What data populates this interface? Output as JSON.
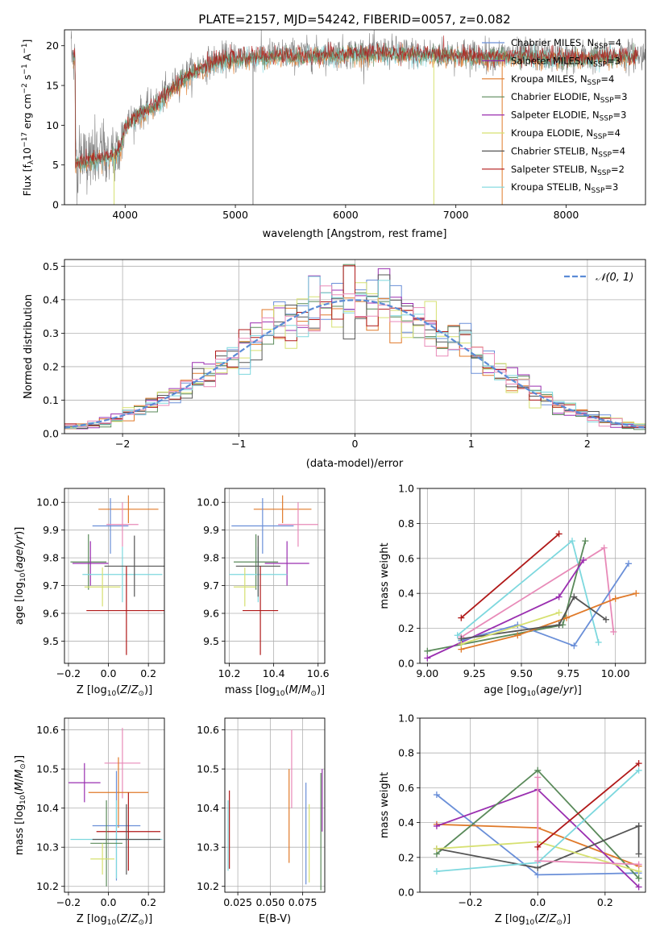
{
  "figure": {
    "title": "PLATE=2157, MJD=54242, FIBERID=0057, z=0.082"
  },
  "colors": {
    "chabrier_miles": "#6a8fd8",
    "salpeter_miles": "#8f2aa8",
    "kroupa_miles": "#e07a2a",
    "chabrier_elodie": "#5a8a5a",
    "salpeter_elodie": "#9a2fb0",
    "kroupa_elodie": "#d6e070",
    "chabrier_stelib": "#555555",
    "salpeter_stelib": "#b01818",
    "kroupa_stelib": "#7dd8de",
    "pink": "#e88ab8",
    "normal_curve": "#5b8bd6"
  },
  "chart_data": [
    {
      "id": "spectrum",
      "type": "line",
      "title": "PLATE=2157, MJD=54242, FIBERID=0057, z=0.082",
      "xlabel": "wavelength [Angstrom, rest frame]",
      "ylabel": "Flux [f_λ10^-17 erg cm^-2 s^-1 A^-1]",
      "xlim": [
        3450,
        8720
      ],
      "ylim": [
        0,
        22
      ],
      "xticks": [
        4000,
        5000,
        6000,
        7000,
        8000
      ],
      "yticks": [
        0,
        5,
        10,
        15,
        20
      ],
      "legend_position": "right",
      "legend": [
        "Chabrier MILES, N_SSP=4",
        "Salpeter MILES, N_SSP=3",
        "Kroupa MILES, N_SSP=4",
        "Chabrier ELODIE, N_SSP=3",
        "Salpeter ELODIE, N_SSP=3",
        "Kroupa ELODIE, N_SSP=4",
        "Chabrier STELIB, N_SSP=4",
        "Salpeter STELIB, N_SSP=2",
        "Kroupa STELIB, N_SSP=3"
      ],
      "continuum": {
        "x": [
          3550,
          3700,
          3850,
          3950,
          4000,
          4100,
          4200,
          4300,
          4400,
          4500,
          4600,
          4700,
          4800,
          4900,
          5000,
          5200,
          5400,
          5600,
          5800,
          6000,
          6200,
          6400,
          6600,
          6800,
          7000,
          7200,
          7400,
          7600,
          7800,
          8000,
          8200,
          8400,
          8600
        ],
        "y": [
          5.5,
          5.8,
          6.2,
          7.0,
          10.0,
          11.3,
          12.0,
          13.0,
          14.5,
          15.8,
          16.8,
          17.5,
          18.0,
          18.4,
          18.6,
          18.8,
          18.9,
          18.9,
          19.0,
          19.1,
          19.2,
          19.2,
          19.1,
          19.0,
          19.0,
          18.9,
          18.8,
          18.8,
          18.7,
          18.6,
          18.6,
          18.7,
          18.8
        ]
      }
    },
    {
      "id": "residuals",
      "type": "bar",
      "xlabel": "(data-model)/error",
      "ylabel": "Normed distribution",
      "xlim": [
        -2.5,
        2.5
      ],
      "ylim": [
        0,
        0.52
      ],
      "xticks": [
        -2,
        -1,
        0,
        1,
        2
      ],
      "yticks": [
        0.0,
        0.1,
        0.2,
        0.3,
        0.4,
        0.5
      ],
      "legend": [
        "𝒩(0, 1)"
      ],
      "legend_position": "top-right",
      "bin_width": 0.1
    },
    {
      "id": "age_vs_Z",
      "type": "scatter",
      "xlabel": "Z [log10(Z/Z☉)]",
      "ylabel": "age  [log10(age/yr)]",
      "xlim": [
        -0.22,
        0.28
      ],
      "ylim": [
        9.42,
        10.05
      ],
      "xticks": [
        -0.2,
        0.0,
        0.2
      ],
      "yticks": [
        9.5,
        9.6,
        9.7,
        9.8,
        9.9,
        10.0
      ],
      "points": [
        {
          "series": "kroupa_miles",
          "x": 0.1,
          "xerr": 0.15,
          "y": 9.975,
          "yerr": 0.05
        },
        {
          "series": "chabrier_miles",
          "x": 0.01,
          "xerr": 0.09,
          "y": 9.915,
          "yerr": 0.1
        },
        {
          "series": "pink",
          "x": 0.07,
          "xerr": 0.08,
          "y": 9.92,
          "yerr": 0.08
        },
        {
          "series": "chabrier_elodie",
          "x": -0.1,
          "xerr": 0.09,
          "y": 9.785,
          "yerr": 0.1
        },
        {
          "series": "salpeter_elodie",
          "x": -0.09,
          "xerr": 0.09,
          "y": 9.78,
          "yerr": 0.08
        },
        {
          "series": "kroupa_stelib",
          "x": 0.07,
          "xerr": 0.2,
          "y": 9.74,
          "yerr": 0.1
        },
        {
          "series": "chabrier_stelib",
          "x": 0.13,
          "xerr": 0.15,
          "y": 9.77,
          "yerr": 0.11
        },
        {
          "series": "kroupa_elodie",
          "x": -0.03,
          "xerr": 0.09,
          "y": 9.695,
          "yerr": 0.07
        },
        {
          "series": "salpeter_stelib",
          "x": 0.09,
          "xerr": 0.2,
          "y": 9.61,
          "yerr": 0.16
        }
      ]
    },
    {
      "id": "age_vs_mass",
      "type": "scatter",
      "xlabel": "mass [log10(M/M☉)]",
      "ylabel": "",
      "xlim": [
        10.18,
        10.63
      ],
      "ylim": [
        9.42,
        10.05
      ],
      "xticks": [
        10.2,
        10.4,
        10.6
      ],
      "yticks": [
        9.5,
        9.6,
        9.7,
        9.8,
        9.9,
        10.0
      ],
      "points": [
        {
          "series": "kroupa_miles",
          "x": 10.44,
          "xerr": 0.13,
          "y": 9.975,
          "yerr": 0.05
        },
        {
          "series": "chabrier_miles",
          "x": 10.35,
          "xerr": 0.14,
          "y": 9.915,
          "yerr": 0.1
        },
        {
          "series": "pink",
          "x": 10.51,
          "xerr": 0.09,
          "y": 9.92,
          "yerr": 0.08
        },
        {
          "series": "chabrier_elodie",
          "x": 10.32,
          "xerr": 0.1,
          "y": 9.785,
          "yerr": 0.1
        },
        {
          "series": "salpeter_elodie",
          "x": 10.46,
          "xerr": 0.1,
          "y": 9.78,
          "yerr": 0.08
        },
        {
          "series": "kroupa_stelib",
          "x": 10.33,
          "xerr": 0.13,
          "y": 9.74,
          "yerr": 0.1
        },
        {
          "series": "chabrier_stelib",
          "x": 10.33,
          "xerr": 0.1,
          "y": 9.77,
          "yerr": 0.11
        },
        {
          "series": "kroupa_elodie",
          "x": 10.27,
          "xerr": 0.05,
          "y": 9.695,
          "yerr": 0.07
        },
        {
          "series": "salpeter_stelib",
          "x": 10.34,
          "xerr": 0.08,
          "y": 9.61,
          "yerr": 0.16
        }
      ]
    },
    {
      "id": "weight_vs_age",
      "type": "line",
      "xlabel": "age  [log10(age/yr)]",
      "ylabel": "mass weight",
      "xlim": [
        8.96,
        10.16
      ],
      "ylim": [
        0,
        1.0
      ],
      "xticks": [
        9.0,
        9.25,
        9.5,
        9.75,
        10.0
      ],
      "yticks": [
        0.0,
        0.2,
        0.4,
        0.6,
        0.8,
        1.0
      ],
      "series": [
        {
          "key": "salpeter_stelib",
          "x": [
            9.18,
            9.7
          ],
          "y": [
            0.26,
            0.74
          ]
        },
        {
          "key": "kroupa_stelib",
          "x": [
            9.16,
            9.77,
            9.91
          ],
          "y": [
            0.16,
            0.7,
            0.12
          ]
        },
        {
          "key": "pink",
          "x": [
            9.18,
            9.94,
            9.99
          ],
          "y": [
            0.15,
            0.66,
            0.18
          ]
        },
        {
          "key": "chabrier_elodie",
          "x": [
            9.0,
            9.72,
            9.84
          ],
          "y": [
            0.07,
            0.22,
            0.7
          ]
        },
        {
          "key": "salpeter_elodie",
          "x": [
            9.0,
            9.7,
            9.83
          ],
          "y": [
            0.03,
            0.38,
            0.59
          ]
        },
        {
          "key": "chabrier_miles",
          "x": [
            9.18,
            9.48,
            9.78,
            10.07
          ],
          "y": [
            0.13,
            0.22,
            0.1,
            0.57
          ]
        },
        {
          "key": "kroupa_miles",
          "x": [
            9.18,
            9.48,
            9.74,
            10.0,
            10.11
          ],
          "y": [
            0.08,
            0.16,
            0.26,
            0.37,
            0.4
          ]
        },
        {
          "key": "chabrier_stelib",
          "x": [
            9.18,
            9.7,
            9.78,
            9.95
          ],
          "y": [
            0.14,
            0.22,
            0.38,
            0.25
          ]
        },
        {
          "key": "kroupa_elodie",
          "x": [
            9.18,
            9.7
          ],
          "y": [
            0.11,
            0.29
          ]
        }
      ]
    },
    {
      "id": "mass_vs_Z",
      "type": "scatter",
      "xlabel": "Z [log10(Z/Z☉)]",
      "ylabel": "mass [log10(M/M☉)]",
      "xlim": [
        -0.22,
        0.28
      ],
      "ylim": [
        10.185,
        10.63
      ],
      "xticks": [
        -0.2,
        0.0,
        0.2
      ],
      "yticks": [
        10.2,
        10.3,
        10.4,
        10.5,
        10.6
      ],
      "points": [
        {
          "series": "pink",
          "x": 0.07,
          "xerr": 0.09,
          "y": 10.515,
          "yerr": 0.09
        },
        {
          "series": "salpeter_elodie",
          "x": -0.12,
          "xerr": 0.08,
          "y": 10.465,
          "yerr": 0.05
        },
        {
          "series": "kroupa_miles",
          "x": 0.05,
          "xerr": 0.15,
          "y": 10.44,
          "yerr": 0.09
        },
        {
          "series": "chabrier_miles",
          "x": 0.04,
          "xerr": 0.12,
          "y": 10.355,
          "yerr": 0.14
        },
        {
          "series": "salpeter_stelib",
          "x": 0.1,
          "xerr": 0.16,
          "y": 10.34,
          "yerr": 0.1
        },
        {
          "series": "kroupa_stelib",
          "x": 0.04,
          "xerr": 0.23,
          "y": 10.32,
          "yerr": 0.1
        },
        {
          "series": "chabrier_stelib",
          "x": 0.09,
          "xerr": 0.17,
          "y": 10.32,
          "yerr": 0.09
        },
        {
          "series": "chabrier_elodie",
          "x": -0.01,
          "xerr": 0.08,
          "y": 10.31,
          "yerr": 0.11
        },
        {
          "series": "kroupa_elodie",
          "x": -0.03,
          "xerr": 0.06,
          "y": 10.27,
          "yerr": 0.04
        }
      ]
    },
    {
      "id": "mass_vs_ebv",
      "type": "scatter",
      "xlabel": "E(B-V)",
      "ylabel": "",
      "xlim": [
        0.015,
        0.092
      ],
      "ylim": [
        10.185,
        10.63
      ],
      "xticks": [
        0.025,
        0.05,
        0.075
      ],
      "xticklabels": [
        "0.025",
        "0.050",
        "0.075"
      ],
      "yticks": [
        10.2,
        10.3,
        10.4,
        10.5,
        10.6
      ],
      "points": [
        {
          "series": "salpeter_stelib",
          "x": 0.0185,
          "y": 10.345,
          "yerr": 0.1
        },
        {
          "series": "kroupa_stelib",
          "x": 0.0175,
          "y": 10.33,
          "yerr": 0.09
        },
        {
          "series": "kroupa_miles",
          "x": 0.0645,
          "y": 10.38,
          "yerr": 0.12
        },
        {
          "series": "pink",
          "x": 0.0665,
          "y": 10.5,
          "yerr": 0.1
        },
        {
          "series": "chabrier_miles",
          "x": 0.0775,
          "y": 10.335,
          "yerr": 0.13
        },
        {
          "series": "kroupa_elodie",
          "x": 0.08,
          "y": 10.31,
          "yerr": 0.1
        },
        {
          "series": "chabrier_elodie",
          "x": 0.089,
          "y": 10.34,
          "yerr": 0.15
        },
        {
          "series": "salpeter_elodie",
          "x": 0.09,
          "y": 10.42,
          "yerr": 0.08
        }
      ]
    },
    {
      "id": "weight_vs_Z",
      "type": "line",
      "xlabel": "Z [log10(Z/Z☉)]",
      "ylabel": "mass weight",
      "xlim": [
        -0.35,
        0.32
      ],
      "ylim": [
        0,
        1.0
      ],
      "xticks": [
        -0.2,
        0.0,
        0.2
      ],
      "yticks": [
        0.0,
        0.2,
        0.4,
        0.6,
        0.8,
        1.0
      ],
      "series": [
        {
          "key": "chabrier_miles",
          "x": [
            -0.3,
            0.0,
            0.3
          ],
          "y": [
            0.56,
            0.1,
            0.11
          ]
        },
        {
          "key": "kroupa_miles",
          "x": [
            -0.3,
            0.0,
            0.3
          ],
          "y": [
            0.39,
            0.37,
            0.15
          ]
        },
        {
          "key": "salpeter_elodie",
          "x": [
            -0.3,
            0.0,
            0.3
          ],
          "y": [
            0.38,
            0.59,
            0.03
          ]
        },
        {
          "key": "chabrier_elodie",
          "x": [
            -0.3,
            0.0,
            0.3
          ],
          "y": [
            0.22,
            0.7,
            0.08
          ]
        },
        {
          "key": "chabrier_stelib",
          "x": [
            -0.3,
            0.0,
            0.3
          ],
          "y": [
            0.25,
            0.14,
            0.38
          ]
        },
        {
          "key": "kroupa_elodie",
          "x": [
            -0.3,
            0.0,
            0.3
          ],
          "y": [
            0.25,
            0.29,
            0.12
          ]
        },
        {
          "key": "kroupa_stelib",
          "x": [
            -0.3,
            0.0,
            0.3
          ],
          "y": [
            0.12,
            0.17,
            0.7
          ]
        },
        {
          "key": "pink",
          "x": [
            0.0,
            0.0,
            0.3
          ],
          "y": [
            0.66,
            0.18,
            0.16
          ]
        },
        {
          "key": "salpeter_stelib",
          "x": [
            0.0,
            0.3
          ],
          "y": [
            0.26,
            0.74
          ]
        },
        {
          "key": "chabrier_stelib",
          "x": [
            0.3,
            0.3
          ],
          "y": [
            0.22,
            0.38
          ]
        }
      ]
    }
  ]
}
